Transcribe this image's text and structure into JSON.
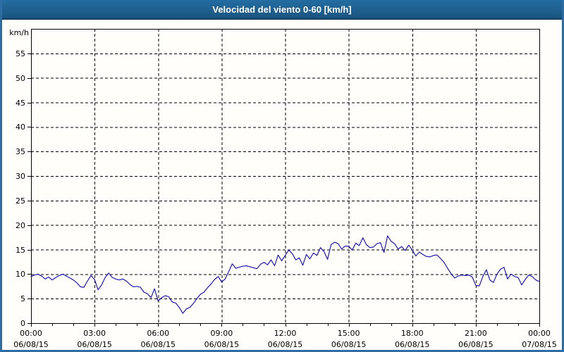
{
  "title": "Velocidad del viento 0-60 [km/h]",
  "colors": {
    "title_bar": "#1d5c8a",
    "title_text": "#ffffff",
    "frame": "#2e6da4",
    "background": "#fffefa",
    "line": "#1b1bb3",
    "axis": "#000000",
    "grid": "#000000",
    "label_text": "#000000"
  },
  "chart_data": {
    "type": "line",
    "title": "Velocidad del viento 0-60 [km/h]",
    "y_unit": "km/h",
    "ylabel": "km/h",
    "xlabel": "",
    "ylim": [
      0,
      60
    ],
    "y_ticks": [
      0,
      5,
      10,
      15,
      20,
      25,
      30,
      35,
      40,
      45,
      50,
      55
    ],
    "x_minutes_range": [
      0,
      1440
    ],
    "minor_tick_every_minutes": 60,
    "grid": "dashed",
    "legend": "none",
    "x_ticks": [
      {
        "hour": 0,
        "time": "00:00",
        "date": "06/08/15"
      },
      {
        "hour": 3,
        "time": "03:00",
        "date": "06/08/15"
      },
      {
        "hour": 6,
        "time": "06:00",
        "date": "06/08/15"
      },
      {
        "hour": 9,
        "time": "09:00",
        "date": "06/08/15"
      },
      {
        "hour": 12,
        "time": "12:00",
        "date": "06/08/15"
      },
      {
        "hour": 15,
        "time": "15:00",
        "date": "06/08/15"
      },
      {
        "hour": 18,
        "time": "18:00",
        "date": "06/08/15"
      },
      {
        "hour": 21,
        "time": "21:00",
        "date": "06/08/15"
      },
      {
        "hour": 24,
        "time": "00:00",
        "date": "07/08/15"
      }
    ],
    "series": [
      {
        "name": "Velocidad del viento",
        "color": "#1b1bb3",
        "points": [
          [
            0,
            9.5
          ],
          [
            10,
            9.8
          ],
          [
            20,
            10.0
          ],
          [
            30,
            9.6
          ],
          [
            40,
            9.0
          ],
          [
            50,
            9.4
          ],
          [
            60,
            8.8
          ],
          [
            70,
            9.3
          ],
          [
            80,
            9.7
          ],
          [
            90,
            10.0
          ],
          [
            100,
            9.6
          ],
          [
            110,
            9.2
          ],
          [
            120,
            8.8
          ],
          [
            130,
            8.2
          ],
          [
            140,
            7.4
          ],
          [
            150,
            7.3
          ],
          [
            160,
            8.6
          ],
          [
            170,
            9.7
          ],
          [
            180,
            8.9
          ],
          [
            190,
            6.8
          ],
          [
            200,
            7.8
          ],
          [
            210,
            9.3
          ],
          [
            220,
            10.2
          ],
          [
            230,
            9.3
          ],
          [
            240,
            9.0
          ],
          [
            250,
            8.8
          ],
          [
            260,
            9.0
          ],
          [
            270,
            8.6
          ],
          [
            280,
            7.9
          ],
          [
            290,
            7.4
          ],
          [
            300,
            7.5
          ],
          [
            310,
            7.3
          ],
          [
            320,
            6.3
          ],
          [
            330,
            6.0
          ],
          [
            340,
            5.2
          ],
          [
            350,
            7.0
          ],
          [
            360,
            4.5
          ],
          [
            370,
            5.2
          ],
          [
            380,
            5.6
          ],
          [
            390,
            5.4
          ],
          [
            400,
            4.3
          ],
          [
            410,
            4.1
          ],
          [
            420,
            3.2
          ],
          [
            430,
            2.0
          ],
          [
            440,
            2.9
          ],
          [
            450,
            3.2
          ],
          [
            460,
            4.0
          ],
          [
            470,
            5.0
          ],
          [
            480,
            5.9
          ],
          [
            490,
            6.3
          ],
          [
            500,
            7.2
          ],
          [
            510,
            8.0
          ],
          [
            520,
            8.9
          ],
          [
            530,
            9.5
          ],
          [
            540,
            8.4
          ],
          [
            550,
            9.0
          ],
          [
            560,
            10.5
          ],
          [
            570,
            12.1
          ],
          [
            580,
            11.2
          ],
          [
            590,
            11.4
          ],
          [
            600,
            11.6
          ],
          [
            610,
            11.7
          ],
          [
            620,
            11.5
          ],
          [
            630,
            11.3
          ],
          [
            640,
            11.1
          ],
          [
            650,
            12.0
          ],
          [
            660,
            12.4
          ],
          [
            670,
            11.9
          ],
          [
            680,
            12.9
          ],
          [
            690,
            11.7
          ],
          [
            700,
            13.9
          ],
          [
            710,
            12.7
          ],
          [
            720,
            13.8
          ],
          [
            730,
            14.9
          ],
          [
            740,
            14.2
          ],
          [
            750,
            12.9
          ],
          [
            760,
            13.3
          ],
          [
            770,
            11.8
          ],
          [
            780,
            14.0
          ],
          [
            790,
            13.1
          ],
          [
            800,
            14.3
          ],
          [
            810,
            13.8
          ],
          [
            820,
            15.4
          ],
          [
            830,
            14.6
          ],
          [
            840,
            13.0
          ],
          [
            850,
            16.0
          ],
          [
            860,
            16.5
          ],
          [
            870,
            16.2
          ],
          [
            880,
            15.1
          ],
          [
            890,
            15.7
          ],
          [
            900,
            15.7
          ],
          [
            910,
            14.9
          ],
          [
            920,
            16.3
          ],
          [
            930,
            15.8
          ],
          [
            940,
            17.4
          ],
          [
            950,
            16.0
          ],
          [
            960,
            15.4
          ],
          [
            970,
            15.5
          ],
          [
            980,
            16.2
          ],
          [
            990,
            16.4
          ],
          [
            1000,
            14.4
          ],
          [
            1010,
            17.8
          ],
          [
            1020,
            16.7
          ],
          [
            1030,
            16.2
          ],
          [
            1040,
            15.1
          ],
          [
            1050,
            15.6
          ],
          [
            1060,
            14.8
          ],
          [
            1070,
            15.9
          ],
          [
            1080,
            14.9
          ],
          [
            1090,
            13.7
          ],
          [
            1100,
            14.5
          ],
          [
            1110,
            14.0
          ],
          [
            1120,
            13.6
          ],
          [
            1130,
            13.5
          ],
          [
            1140,
            13.8
          ],
          [
            1150,
            13.9
          ],
          [
            1160,
            13.2
          ],
          [
            1170,
            12.4
          ],
          [
            1180,
            11.2
          ],
          [
            1190,
            10.1
          ],
          [
            1200,
            9.2
          ],
          [
            1210,
            9.6
          ],
          [
            1220,
            9.8
          ],
          [
            1230,
            9.7
          ],
          [
            1240,
            9.8
          ],
          [
            1250,
            9.4
          ],
          [
            1260,
            7.7
          ],
          [
            1270,
            7.6
          ],
          [
            1280,
            9.5
          ],
          [
            1290,
            10.9
          ],
          [
            1300,
            8.8
          ],
          [
            1310,
            8.3
          ],
          [
            1320,
            10.0
          ],
          [
            1330,
            11.0
          ],
          [
            1340,
            11.4
          ],
          [
            1350,
            9.0
          ],
          [
            1360,
            10.0
          ],
          [
            1370,
            9.5
          ],
          [
            1380,
            9.3
          ],
          [
            1390,
            7.8
          ],
          [
            1400,
            8.9
          ],
          [
            1410,
            9.8
          ],
          [
            1420,
            9.5
          ],
          [
            1430,
            8.8
          ],
          [
            1440,
            8.5
          ]
        ]
      }
    ]
  }
}
